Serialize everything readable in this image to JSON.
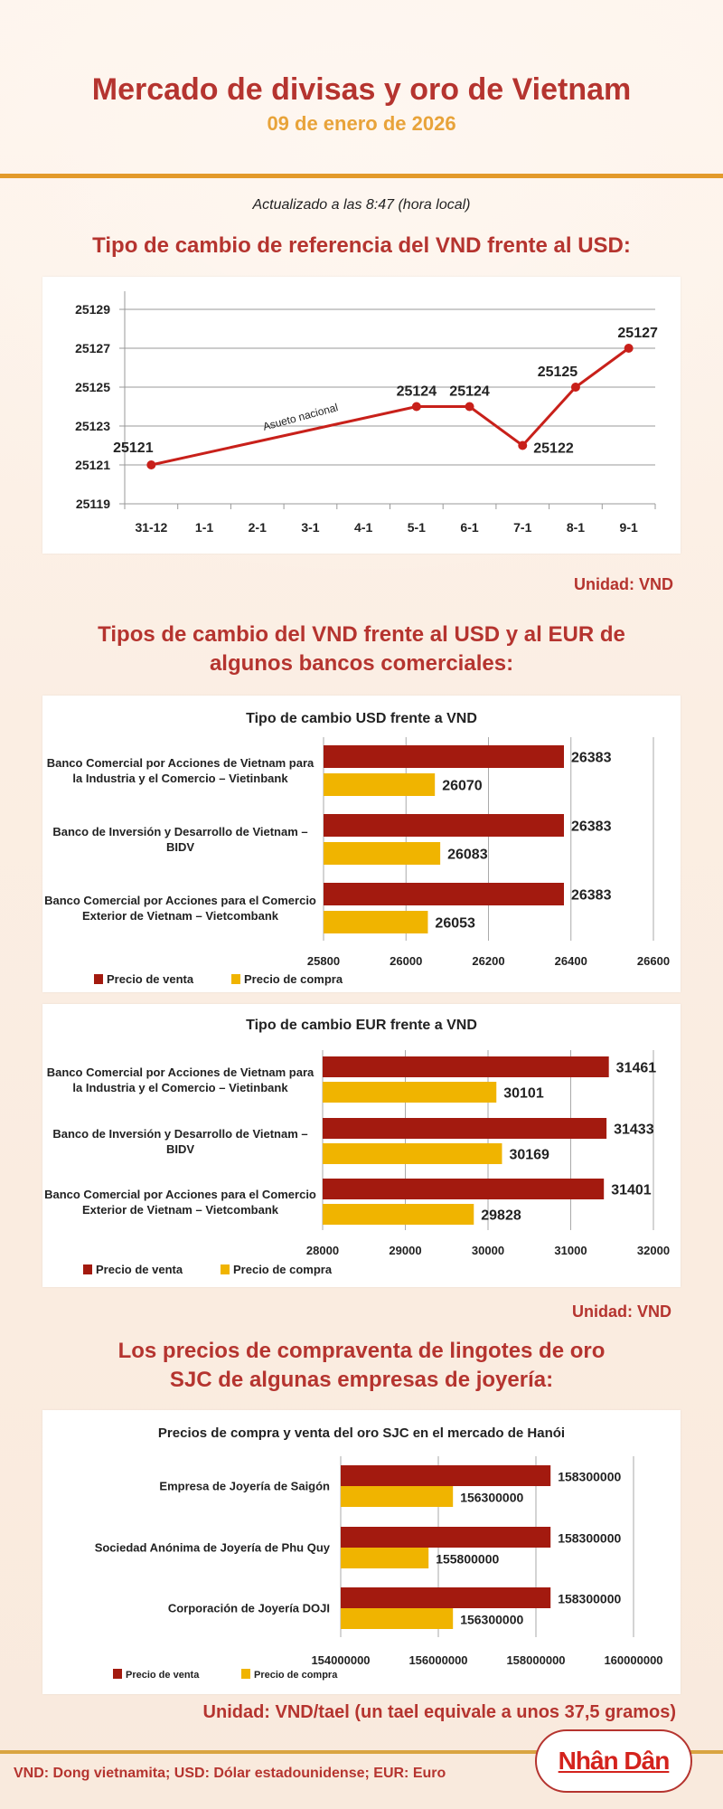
{
  "header": {
    "title": "Mercado de divisas y oro de Vietnam",
    "date": "09 de enero de 2026",
    "updated": "Actualizado a las 8:47 (hora local)"
  },
  "colors": {
    "title_red": "#b5342f",
    "date_orange": "#e8a33a",
    "sell": "#a31a0f",
    "buy": "#f0b400",
    "rule": "#e39a2b"
  },
  "sections": {
    "reference_title": "Tipo de cambio de referencia del VND frente al USD:",
    "reference_unit": "Unidad: VND",
    "banks_title_1": "Tipos de cambio del VND frente al USD y al EUR de",
    "banks_title_2": "algunos bancos comerciales:",
    "banks_unit": "Unidad: VND",
    "gold_title_1": "Los precios de compraventa de lingotes de oro",
    "gold_title_2": "SJC de algunas empresas de joyería:",
    "gold_unit": "Unidad: VND/tael (un tael equivale a unos 37,5 gramos)"
  },
  "footer": {
    "note": "VND: Dong vietnamita; USD: Dólar estadounidense; EUR: Euro",
    "logo_text": "Nhân Dân"
  },
  "chart_data": [
    {
      "type": "line",
      "title": "",
      "categories": [
        "31-12",
        "1-1",
        "2-1",
        "3-1",
        "4-1",
        "5-1",
        "6-1",
        "7-1",
        "8-1",
        "9-1"
      ],
      "points": [
        {
          "x": "31-12",
          "y": 25121
        },
        {
          "x": "5-1",
          "y": 25124
        },
        {
          "x": "6-1",
          "y": 25124
        },
        {
          "x": "7-1",
          "y": 25122
        },
        {
          "x": "8-1",
          "y": 25125
        },
        {
          "x": "9-1",
          "y": 25127
        }
      ],
      "ylim": [
        25119,
        25129
      ],
      "yticks": [
        25119,
        25121,
        25123,
        25125,
        25127,
        25129
      ],
      "annotation": "Asueto nacional",
      "grid": true,
      "color": "#c8201a"
    },
    {
      "type": "bar",
      "orientation": "horizontal",
      "title": "Tipo de cambio USD frente a VND",
      "categories": [
        "Banco Comercial por Acciones de Vietnam para la Industria y el Comercio – Vietinbank",
        "Banco de Inversión y Desarrollo de Vietnam – BIDV",
        "Banco Comercial por Acciones para el Comercio Exterior de Vietnam – Vietcombank"
      ],
      "series": [
        {
          "name": "Precio de venta",
          "values": [
            26383,
            26383,
            26383
          ]
        },
        {
          "name": "Precio de compra",
          "values": [
            26070,
            26083,
            26053
          ]
        }
      ],
      "xlim": [
        25800,
        26600
      ],
      "xticks": [
        25800,
        26000,
        26200,
        26400,
        26600
      ],
      "legend": "bottom-left",
      "grid": true
    },
    {
      "type": "bar",
      "orientation": "horizontal",
      "title": "Tipo de cambio EUR frente a VND",
      "categories": [
        "Banco Comercial por Acciones de Vietnam para la Industria y el Comercio – Vietinbank",
        "Banco de Inversión y Desarrollo de Vietnam – BIDV",
        "Banco Comercial por Acciones para el Comercio Exterior de Vietnam – Vietcombank"
      ],
      "series": [
        {
          "name": "Precio de venta",
          "values": [
            31461,
            31433,
            31401
          ]
        },
        {
          "name": "Precio de compra",
          "values": [
            30101,
            30169,
            29828
          ]
        }
      ],
      "xlim": [
        28000,
        32000
      ],
      "xticks": [
        28000,
        29000,
        30000,
        31000,
        32000
      ],
      "legend": "bottom-left",
      "grid": true
    },
    {
      "type": "bar",
      "orientation": "horizontal",
      "title": "Precios de compra y venta del oro SJC en el mercado de Hanói",
      "categories": [
        "Empresa de Joyería de Saigón",
        "Sociedad Anónima de Joyería de Phu Quy",
        "Corporación de Joyería DOJI"
      ],
      "series": [
        {
          "name": "Precio de venta",
          "values": [
            158300000,
            158300000,
            158300000
          ]
        },
        {
          "name": "Precio de compra",
          "values": [
            156300000,
            155800000,
            156300000
          ]
        }
      ],
      "xlim": [
        154000000,
        160000000
      ],
      "xticks": [
        154000000,
        156000000,
        158000000,
        160000000
      ],
      "legend": "bottom-left",
      "grid": true
    }
  ]
}
